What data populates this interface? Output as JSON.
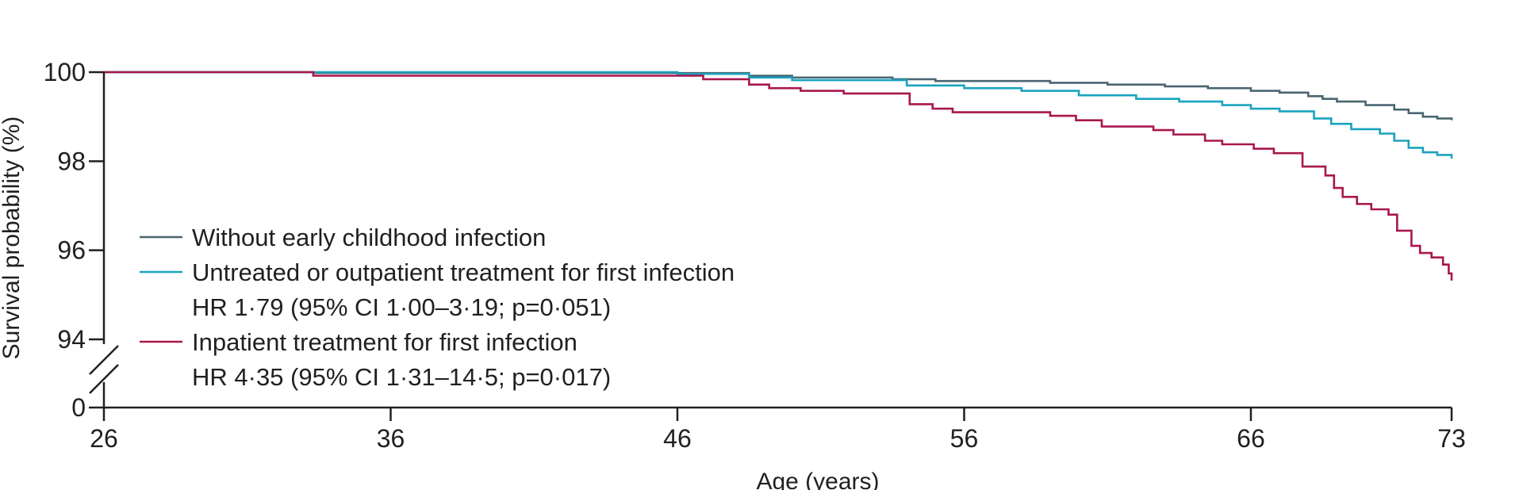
{
  "chart_data": {
    "type": "line",
    "subtype": "kaplan-meier step",
    "xlabel": "Age (years)",
    "ylabel": "Survival probability (%)",
    "xlim": [
      26,
      73
    ],
    "ylim": [
      94,
      100
    ],
    "axis_break": true,
    "x_ticks": [
      "26",
      "36",
      "46",
      "56",
      "66",
      "73"
    ],
    "x_tick_values": [
      26,
      36,
      46,
      56,
      66,
      73
    ],
    "y_ticks": [
      "100",
      "98",
      "96",
      "94",
      "0"
    ],
    "y_tick_values": [
      100,
      98,
      96,
      94,
      0
    ],
    "grid": false,
    "legend_position": "bottom-left",
    "series": [
      {
        "name": "Without early childhood infection",
        "color": "#4a6670",
        "points": [
          [
            26,
            100
          ],
          [
            33.3,
            99.98
          ],
          [
            48.5,
            99.92
          ],
          [
            50,
            99.88
          ],
          [
            53.5,
            99.84
          ],
          [
            55,
            99.8
          ],
          [
            59,
            99.76
          ],
          [
            61,
            99.72
          ],
          [
            63,
            99.68
          ],
          [
            64.5,
            99.64
          ],
          [
            66,
            99.58
          ],
          [
            67,
            99.54
          ],
          [
            68,
            99.46
          ],
          [
            68.5,
            99.4
          ],
          [
            69,
            99.34
          ],
          [
            70,
            99.26
          ],
          [
            71,
            99.16
          ],
          [
            71.5,
            99.08
          ],
          [
            72,
            99.0
          ],
          [
            72.5,
            98.96
          ],
          [
            73,
            98.92
          ]
        ]
      },
      {
        "name": "Untreated or outpatient treatment for first infection",
        "hr": "HR 1·79 (95% CI 1·00–3·19; p=0·051)",
        "color": "#1aa3be",
        "points": [
          [
            26,
            100
          ],
          [
            46,
            99.96
          ],
          [
            48.5,
            99.88
          ],
          [
            50,
            99.82
          ],
          [
            54,
            99.7
          ],
          [
            56,
            99.64
          ],
          [
            58,
            99.58
          ],
          [
            60,
            99.48
          ],
          [
            62,
            99.4
          ],
          [
            63.5,
            99.34
          ],
          [
            65,
            99.26
          ],
          [
            66,
            99.18
          ],
          [
            67,
            99.12
          ],
          [
            68.2,
            98.96
          ],
          [
            68.8,
            98.84
          ],
          [
            69.5,
            98.72
          ],
          [
            70.5,
            98.62
          ],
          [
            71,
            98.46
          ],
          [
            71.5,
            98.3
          ],
          [
            72,
            98.2
          ],
          [
            72.5,
            98.14
          ],
          [
            73,
            98.06
          ]
        ]
      },
      {
        "name": "Inpatient treatment for first infection",
        "hr": "HR 4·35 (95% CI 1·31–14·5; p=0·017)",
        "color": "#a8174e",
        "points": [
          [
            26,
            100
          ],
          [
            33.3,
            99.92
          ],
          [
            46.9,
            99.84
          ],
          [
            48.5,
            99.72
          ],
          [
            49.2,
            99.64
          ],
          [
            50.3,
            99.58
          ],
          [
            51.8,
            99.52
          ],
          [
            54.1,
            99.28
          ],
          [
            54.9,
            99.18
          ],
          [
            55.6,
            99.1
          ],
          [
            59,
            99.02
          ],
          [
            59.9,
            98.92
          ],
          [
            60.8,
            98.78
          ],
          [
            62.6,
            98.7
          ],
          [
            63.3,
            98.6
          ],
          [
            64.4,
            98.46
          ],
          [
            65,
            98.38
          ],
          [
            66.1,
            98.28
          ],
          [
            66.8,
            98.18
          ],
          [
            67.8,
            97.88
          ],
          [
            68.6,
            97.68
          ],
          [
            68.9,
            97.4
          ],
          [
            69.2,
            97.2
          ],
          [
            69.7,
            97.04
          ],
          [
            70.2,
            96.92
          ],
          [
            70.8,
            96.8
          ],
          [
            71.1,
            96.44
          ],
          [
            71.6,
            96.1
          ],
          [
            71.9,
            95.94
          ],
          [
            72.3,
            95.84
          ],
          [
            72.7,
            95.68
          ],
          [
            72.9,
            95.48
          ],
          [
            73,
            95.32
          ]
        ]
      }
    ],
    "legend": [
      {
        "label": "Without early childhood infection",
        "sub": ""
      },
      {
        "label": "Untreated or outpatient treatment for first infection",
        "sub": "HR 1·79 (95% CI 1·00–3·19; p=0·051)"
      },
      {
        "label": "Inpatient treatment for first infection",
        "sub": "HR 4·35 (95% CI 1·31–14·5; p=0·017)"
      }
    ]
  }
}
